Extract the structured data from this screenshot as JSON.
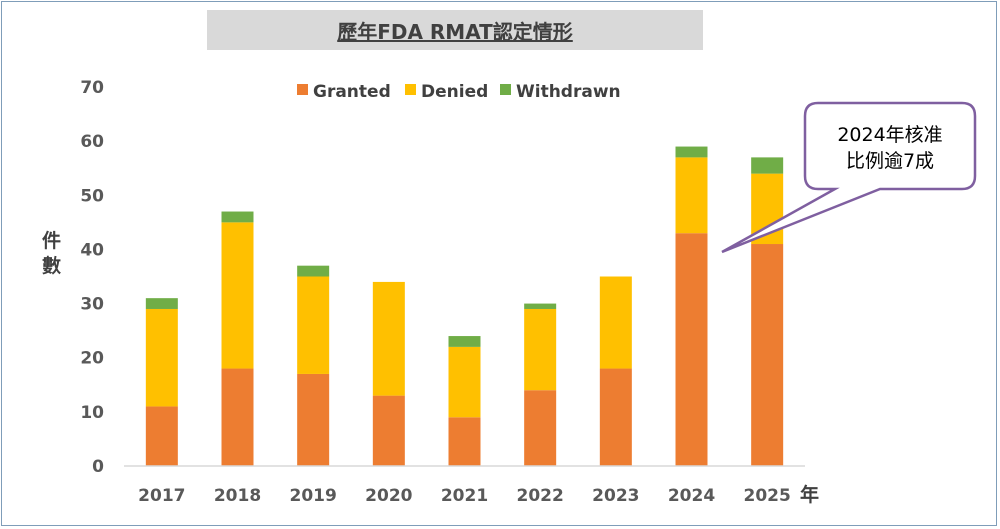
{
  "title": "歷年FDA RMAT認定情形",
  "chart_data": {
    "type": "bar",
    "stacked": true,
    "categories": [
      "2017",
      "2018",
      "2019",
      "2020",
      "2021",
      "2022",
      "2023",
      "2024",
      "2025"
    ],
    "series": [
      {
        "name": "Granted",
        "color": "#ed7d31",
        "values": [
          11,
          18,
          17,
          13,
          9,
          14,
          18,
          43,
          41
        ]
      },
      {
        "name": "Denied",
        "color": "#ffc000",
        "values": [
          18,
          27,
          18,
          21,
          13,
          15,
          17,
          14,
          13
        ]
      },
      {
        "name": "Withdrawn",
        "color": "#70ad47",
        "values": [
          2,
          2,
          2,
          0,
          2,
          1,
          0,
          2,
          3
        ]
      }
    ],
    "xlabel": "年",
    "ylabel": "件數",
    "ylim": [
      0,
      70
    ],
    "yticks": [
      "0",
      "10",
      "20",
      "30",
      "40",
      "50",
      "60",
      "70"
    ],
    "grid": false,
    "legend_position": "top"
  },
  "callout": {
    "line1": "2024年核准",
    "line2": "比例逾7成",
    "border_color": "#7f5fa0"
  }
}
